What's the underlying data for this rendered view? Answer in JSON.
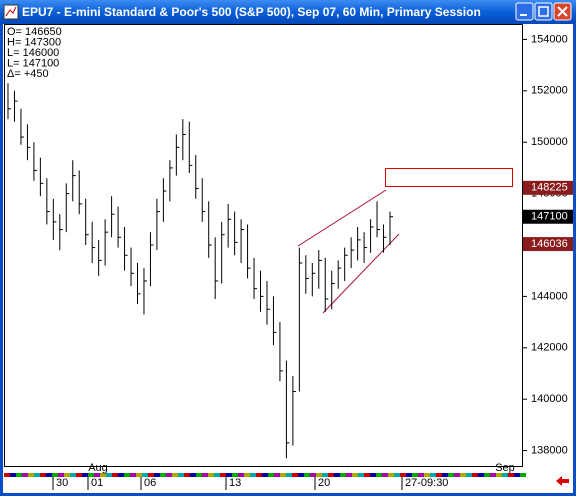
{
  "window": {
    "title": "EPU7 - E-mini Standard & Poor's 500 (S&P 500), Sep 07, 60 Min, Primary Session"
  },
  "chart_data": {
    "type": "ohlc",
    "info": [
      "O= 146650",
      "H= 147300",
      "L= 146000",
      "L= 147100",
      "Δ=    +450"
    ],
    "month_labels": [
      "Aug",
      "Sep"
    ],
    "x_labels": [
      "30",
      "01",
      "06",
      "13",
      "20",
      "27-09:30"
    ],
    "ylim": [
      137400,
      154600
    ],
    "yticks": [
      138000,
      140000,
      142000,
      144000,
      146000,
      148000,
      150000,
      152000,
      154000
    ],
    "price_markers": [
      {
        "value": 148225,
        "color": "#8b1c1c"
      },
      {
        "value": 147100,
        "color": "#000000"
      },
      {
        "value": 146036,
        "color": "#8b1c1c"
      }
    ],
    "color": "#000000",
    "high": [
      152300,
      152000,
      151300,
      150700,
      150000,
      149400,
      148600,
      147800,
      147200,
      148400,
      149300,
      148900,
      147800,
      146900,
      146200,
      147000,
      147900,
      147500,
      146700,
      145900,
      145300,
      145100,
      146500,
      147800,
      148600,
      149300,
      150300,
      150900,
      150800,
      149500,
      148600,
      147700,
      146300,
      146900,
      147600,
      147300,
      147000,
      146800,
      145500,
      145000,
      144600,
      144000,
      143000,
      141500,
      140900,
      145900,
      145600,
      145300,
      145800,
      145500,
      145000,
      145400,
      145900,
      146300,
      146700,
      146500,
      147000,
      147700,
      146800,
      147300
    ],
    "low": [
      150900,
      150800,
      149900,
      149300,
      148500,
      147900,
      146800,
      146200,
      145800,
      146500,
      147700,
      147200,
      146000,
      145300,
      144800,
      145200,
      146300,
      145900,
      145000,
      144400,
      143700,
      143300,
      144400,
      145800,
      146900,
      147700,
      148700,
      149300,
      148800,
      147800,
      146900,
      145500,
      143900,
      144500,
      145900,
      145600,
      145300,
      144700,
      143900,
      143400,
      142900,
      142100,
      140700,
      137700,
      138200,
      140300,
      144100,
      144000,
      144300,
      143400,
      143500,
      144300,
      144600,
      145100,
      145400,
      145300,
      145700,
      146300,
      145700,
      146000
    ],
    "close": [
      151300,
      151600,
      150200,
      149800,
      148900,
      148400,
      147300,
      146900,
      146600,
      148000,
      148700,
      147600,
      146400,
      145900,
      145400,
      146500,
      147200,
      146300,
      145600,
      144900,
      144100,
      144600,
      146000,
      147300,
      148100,
      149000,
      149800,
      150300,
      149100,
      148200,
      147300,
      146000,
      144600,
      146400,
      147000,
      146100,
      146600,
      145100,
      144300,
      144000,
      143500,
      142600,
      141100,
      138300,
      140300,
      145300,
      144700,
      144900,
      145400,
      143900,
      144500,
      145100,
      145600,
      145800,
      146200,
      145900,
      146700,
      146600,
      146300,
      147100
    ]
  }
}
